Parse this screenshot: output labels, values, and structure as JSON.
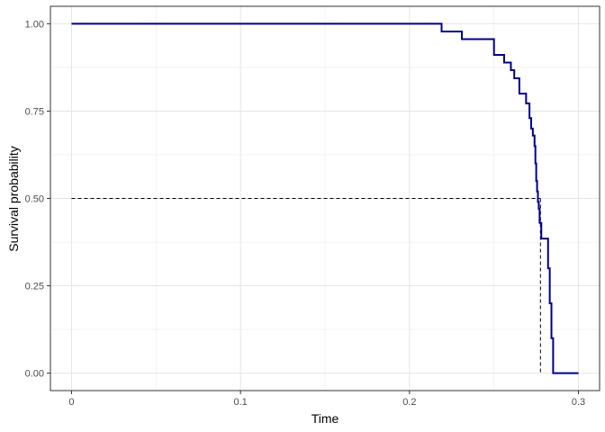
{
  "chart_data": {
    "type": "line",
    "title": "",
    "xlabel": "Time",
    "ylabel": "Survival probability",
    "xlim": [
      -0.0125,
      0.3125
    ],
    "ylim": [
      -0.05,
      1.05
    ],
    "x_ticks": [
      0,
      0.1,
      0.2,
      0.3
    ],
    "x_tick_labels": [
      "0",
      "0.1",
      "0.2",
      "0.3"
    ],
    "y_ticks": [
      0,
      0.25,
      0.5,
      0.75,
      1.0
    ],
    "y_tick_labels": [
      "0.00",
      "0.25",
      "0.50",
      "0.75",
      "1.00"
    ],
    "grid": true,
    "step_curve": {
      "color": "#00008B",
      "x": [
        0,
        0.219,
        0.231,
        0.25,
        0.256,
        0.26,
        0.262,
        0.265,
        0.269,
        0.271,
        0.272,
        0.273,
        0.274,
        0.2745,
        0.275,
        0.2755,
        0.276,
        0.2765,
        0.277,
        0.278,
        0.282,
        0.283,
        0.284,
        0.285,
        0.3
      ],
      "y": [
        1.0,
        0.978,
        0.956,
        0.911,
        0.889,
        0.867,
        0.844,
        0.8,
        0.772,
        0.73,
        0.7,
        0.68,
        0.65,
        0.6,
        0.55,
        0.52,
        0.49,
        0.47,
        0.43,
        0.385,
        0.3,
        0.2,
        0.1,
        0.0,
        0.0
      ]
    },
    "median_reference": {
      "color": "#000000",
      "style": "dashed",
      "y": 0.5,
      "x": 0.2775
    }
  }
}
